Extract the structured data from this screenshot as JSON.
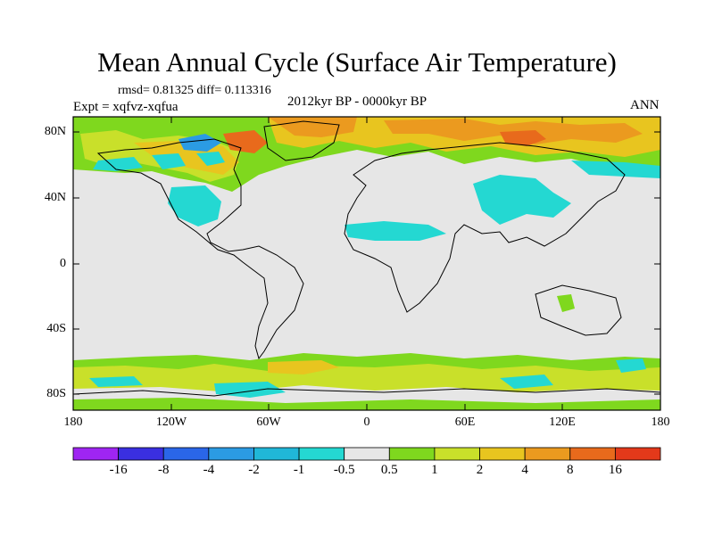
{
  "title": "Mean Annual Cycle (Surface Air Temperature)",
  "stats_line": "rmsd= 0.81325 diff= 0.113316",
  "experiment": "Expt = xqfvz-xqfua",
  "period": "2012kyr BP - 0000kyr BP",
  "season": "ANN",
  "lat_ticks": [
    "80N",
    "40N",
    "0",
    "40S",
    "80S"
  ],
  "lon_ticks": [
    "180",
    "120W",
    "60W",
    "0",
    "60E",
    "120E",
    "180"
  ],
  "colorbar": {
    "labels": [
      "-16",
      "-8",
      "-4",
      "-2",
      "-1",
      "-0.5",
      "0.5",
      "1",
      "2",
      "4",
      "8",
      "16"
    ],
    "colors": [
      "#9f25f2",
      "#3a2fe0",
      "#2a66e8",
      "#2b9be3",
      "#20b7d8",
      "#24d8d2",
      "#e6e6e6",
      "#7fd81e",
      "#c9e02a",
      "#e8c51f",
      "#eb9a1f",
      "#e86a1c",
      "#e3391a"
    ]
  },
  "colors": {
    "background_land_ocean": "#e6e6e6",
    "coast": "#000000"
  }
}
